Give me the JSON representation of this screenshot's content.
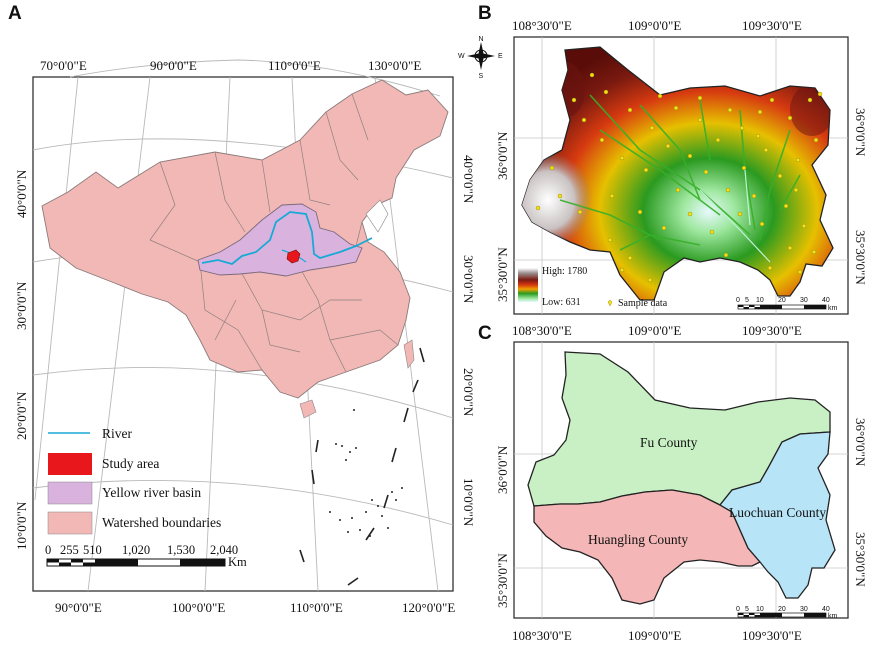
{
  "panels": {
    "a": {
      "letter": "A"
    },
    "b": {
      "letter": "B"
    },
    "c": {
      "letter": "C"
    }
  },
  "map_a": {
    "top_lon": [
      "70°0'0\"E",
      "90°0'0\"E",
      "110°0'0\"E",
      "130°0'0\"E"
    ],
    "bottom_lon": [
      "90°0'0\"E",
      "100°0'0\"E",
      "110°0'0\"E",
      "120°0'0\"E"
    ],
    "left_lat": [
      "40°0'0\"N",
      "30°0'0\"N",
      "20°0'0\"N",
      "10°0'0\"N"
    ],
    "right_lat": [
      "40°0'0\"N",
      "30°0'0\"N",
      "20°0'0\"N",
      "10°0'0\"N"
    ],
    "legend": {
      "river": "River",
      "study": "Study area",
      "basin": "Yellow river basin",
      "watershed": "Watershed boundaries"
    },
    "scale": {
      "ticks": [
        "0",
        "255",
        "510",
        "1,020",
        "1,530",
        "2,040"
      ],
      "unit": "Km"
    },
    "colors": {
      "land": "#f2b8b5",
      "basin": "#d9b3dd",
      "river": "#18a9d6",
      "study": "#e8171b"
    }
  },
  "map_b": {
    "top_lon": [
      "108°30'0\"E",
      "109°0'0\"E",
      "109°30'0\"E"
    ],
    "left_lat": [
      "36°0'0\"N",
      "35°30'0\"N"
    ],
    "right_lat": [
      "36°0'0\"N",
      "35°30'0\"N"
    ],
    "legend": {
      "high": "High: 1780",
      "low": "Low: 631",
      "sample": "Sample data"
    },
    "scale": {
      "ticks": [
        "0",
        "5",
        "10",
        "20",
        "30",
        "40"
      ],
      "unit": "km"
    },
    "compass": {
      "n": "N",
      "s": "S",
      "e": "E",
      "w": "W"
    }
  },
  "map_c": {
    "top_lon": [
      "108°30'0\"E",
      "109°0'0\"E",
      "109°30'0\"E"
    ],
    "bottom_lon": [
      "108°30'0\"E",
      "109°0'0\"E",
      "109°30'0\"E"
    ],
    "left_lat": [
      "36°0'0\"N",
      "35°30'0\"N"
    ],
    "right_lat": [
      "36°0'0\"N",
      "35°30'0\"N"
    ],
    "counties": [
      "Fu County",
      "Huangling County",
      "Luochuan County"
    ],
    "scale": {
      "ticks": [
        "0",
        "5",
        "10",
        "20",
        "30",
        "40"
      ],
      "unit": "km"
    },
    "colors": {
      "fu": "#c8f0c4",
      "huangling": "#f4b6b6",
      "luochuan": "#b8e4f7"
    }
  }
}
